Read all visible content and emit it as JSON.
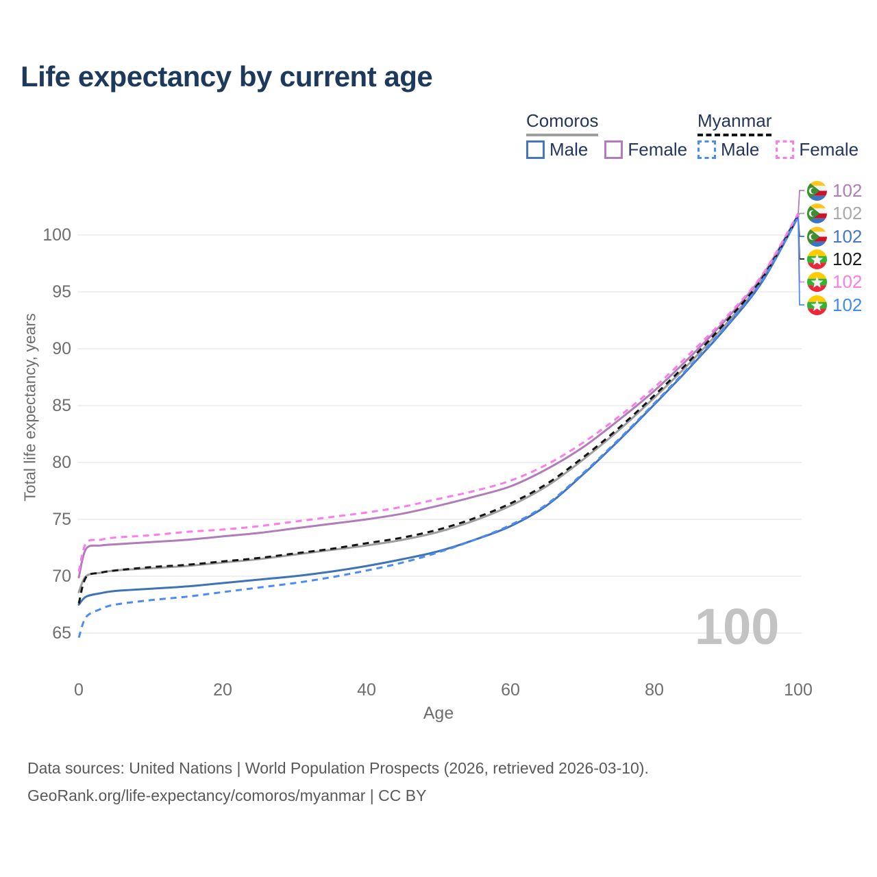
{
  "page": {
    "app": "GeoRank life expectancy comparison"
  },
  "legend": {
    "groups": [
      {
        "title": "Comoros",
        "underline": {
          "style": "solid",
          "color": "#9e9e9e"
        },
        "items": [
          {
            "label": "Male",
            "color": "#4577c0",
            "dashed": false
          },
          {
            "label": "Female",
            "color": "#b07cba",
            "dashed": false
          }
        ]
      },
      {
        "title": "Myanmar",
        "underline": {
          "style": "dashed",
          "color": "#141414"
        },
        "items": [
          {
            "label": "Male",
            "color": "#4b8bf5",
            "dashed": true
          },
          {
            "label": "Female",
            "color": "#fa7de9",
            "dashed": true
          }
        ]
      }
    ]
  },
  "chart_data": {
    "type": "line",
    "title": "Life expectancy by current age",
    "xlabel": "Age",
    "ylabel": "Total life expectancy, years",
    "x_ticks": [
      0,
      20,
      40,
      60,
      80,
      100
    ],
    "y_ticks": [
      65,
      70,
      75,
      80,
      85,
      90,
      95,
      100
    ],
    "xlim": [
      0,
      100
    ],
    "ylim": [
      63.5,
      103
    ],
    "grid": "horizontal",
    "legend_position": "top-right",
    "watermark": "100",
    "ages": [
      0,
      1,
      3,
      5,
      10,
      15,
      20,
      25,
      30,
      35,
      40,
      45,
      50,
      55,
      60,
      65,
      70,
      75,
      80,
      85,
      90,
      95,
      100
    ],
    "series": [
      {
        "id": "comoros-female",
        "country": "Comoros",
        "sex": "Female",
        "flag": "comoros",
        "color": "#b07cba",
        "dashed": false,
        "end_label": "102",
        "end_label_color": "#b07cba",
        "values": [
          69.9,
          72.4,
          72.7,
          72.8,
          73.0,
          73.2,
          73.5,
          73.8,
          74.2,
          74.6,
          75.0,
          75.5,
          76.2,
          77.0,
          77.9,
          79.4,
          81.3,
          83.7,
          86.3,
          89.3,
          92.6,
          96.4,
          101.8
        ]
      },
      {
        "id": "comoros-both",
        "country": "Comoros",
        "sex": "Both",
        "flag": "comoros",
        "color": "#9e9e9e",
        "dashed": false,
        "end_label": "102",
        "end_label_color": "#a9a9a9",
        "values": [
          68.6,
          70.0,
          70.3,
          70.5,
          70.7,
          70.9,
          71.2,
          71.5,
          71.9,
          72.3,
          72.7,
          73.2,
          73.9,
          74.9,
          76.2,
          77.9,
          80.2,
          82.8,
          85.7,
          88.8,
          92.2,
          96.1,
          101.7
        ]
      },
      {
        "id": "comoros-male",
        "country": "Comoros",
        "sex": "Male",
        "flag": "comoros",
        "color": "#4073b6",
        "dashed": false,
        "end_label": "102",
        "end_label_color": "#4577c8",
        "values": [
          67.5,
          68.2,
          68.5,
          68.7,
          68.9,
          69.1,
          69.4,
          69.7,
          70.0,
          70.4,
          70.9,
          71.5,
          72.2,
          73.2,
          74.4,
          76.2,
          78.9,
          81.9,
          85.1,
          88.4,
          91.9,
          95.9,
          101.6
        ]
      },
      {
        "id": "myanmar-both",
        "country": "Myanmar",
        "sex": "Both",
        "flag": "myanmar",
        "color": "#141414",
        "dashed": true,
        "end_label": "102",
        "end_label_color": "#1a1a1a",
        "values": [
          67.6,
          69.9,
          70.3,
          70.5,
          70.8,
          71.0,
          71.3,
          71.6,
          72.0,
          72.4,
          72.9,
          73.4,
          74.1,
          75.1,
          76.4,
          78.1,
          80.4,
          83.0,
          85.9,
          89.0,
          92.4,
          96.2,
          101.7
        ]
      },
      {
        "id": "myanmar-female",
        "country": "Myanmar",
        "sex": "Female",
        "flag": "myanmar",
        "color": "#fa7de9",
        "dashed": true,
        "end_label": "102",
        "end_label_color": "#fa7de9",
        "values": [
          70.4,
          72.9,
          73.2,
          73.4,
          73.6,
          73.9,
          74.1,
          74.4,
          74.8,
          75.2,
          75.6,
          76.1,
          76.8,
          77.5,
          78.4,
          79.8,
          81.7,
          84.0,
          86.6,
          89.6,
          92.8,
          96.5,
          101.9
        ]
      },
      {
        "id": "myanmar-male",
        "country": "Myanmar",
        "sex": "Male",
        "flag": "myanmar",
        "color": "#4b8bf5",
        "dashed": true,
        "end_label": "102",
        "end_label_color": "#4189f4",
        "values": [
          64.6,
          66.4,
          67.1,
          67.5,
          67.9,
          68.2,
          68.6,
          69.0,
          69.4,
          69.9,
          70.5,
          71.2,
          72.1,
          73.2,
          74.5,
          76.3,
          79.0,
          82.0,
          85.2,
          88.5,
          92.0,
          96.0,
          101.6
        ]
      }
    ]
  },
  "footer": {
    "lines": [
      "Data sources: United Nations | World Population Prospects (2026, retrieved 2026-03-10).",
      "GeoRank.org/life-expectancy/comoros/myanmar | CC BY"
    ]
  }
}
